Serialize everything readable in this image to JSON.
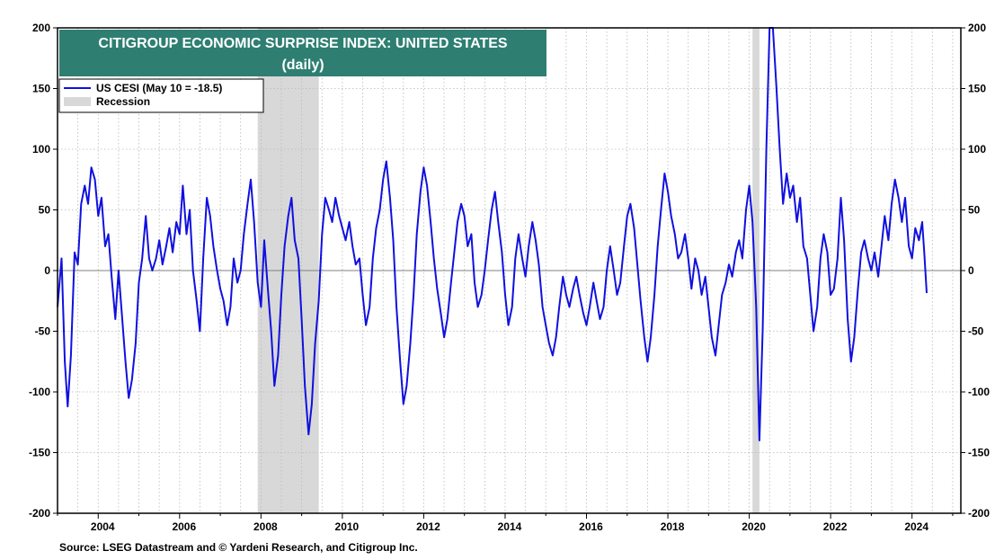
{
  "chart_data": {
    "type": "line",
    "title": "CITIGROUP ECONOMIC SURPRISE INDEX: UNITED STATES",
    "subtitle": "(daily)",
    "source": "Source: LSEG Datastream and © Yardeni Research, and Citigroup Inc.",
    "legend": {
      "placement": "top-left",
      "series_label": "US CESI (May 10 = -18.5)",
      "recession_label": "Recession"
    },
    "xlim": [
      2003.0,
      2025.2
    ],
    "ylim": [
      -200,
      200
    ],
    "x_ticks": [
      2004,
      2006,
      2008,
      2010,
      2012,
      2014,
      2016,
      2018,
      2020,
      2022,
      2024
    ],
    "y_ticks": [
      200,
      150,
      100,
      50,
      0,
      -50,
      -100,
      -150,
      -200
    ],
    "grid": true,
    "zero_line": true,
    "colors": {
      "series": "#1010e0",
      "recession": "#d8d8d8",
      "title_bg": "#2e7f72",
      "zero_line": "#808080"
    },
    "recessions": [
      [
        2007.92,
        2009.42
      ],
      [
        2020.08,
        2020.25
      ]
    ],
    "series": [
      {
        "name": "US CESI",
        "points": [
          [
            2003.0,
            -30
          ],
          [
            2003.1,
            10
          ],
          [
            2003.18,
            -75
          ],
          [
            2003.25,
            -112
          ],
          [
            2003.33,
            -70
          ],
          [
            2003.42,
            15
          ],
          [
            2003.5,
            5
          ],
          [
            2003.58,
            55
          ],
          [
            2003.67,
            70
          ],
          [
            2003.75,
            55
          ],
          [
            2003.83,
            85
          ],
          [
            2003.92,
            75
          ],
          [
            2004.0,
            45
          ],
          [
            2004.08,
            60
          ],
          [
            2004.17,
            20
          ],
          [
            2004.25,
            30
          ],
          [
            2004.33,
            -5
          ],
          [
            2004.42,
            -40
          ],
          [
            2004.5,
            0
          ],
          [
            2004.58,
            -35
          ],
          [
            2004.67,
            -75
          ],
          [
            2004.75,
            -105
          ],
          [
            2004.83,
            -90
          ],
          [
            2004.92,
            -60
          ],
          [
            2005.0,
            -10
          ],
          [
            2005.08,
            10
          ],
          [
            2005.17,
            45
          ],
          [
            2005.25,
            10
          ],
          [
            2005.33,
            0
          ],
          [
            2005.42,
            10
          ],
          [
            2005.5,
            25
          ],
          [
            2005.58,
            5
          ],
          [
            2005.67,
            20
          ],
          [
            2005.75,
            35
          ],
          [
            2005.83,
            15
          ],
          [
            2005.92,
            40
          ],
          [
            2006.0,
            30
          ],
          [
            2006.08,
            70
          ],
          [
            2006.17,
            30
          ],
          [
            2006.25,
            50
          ],
          [
            2006.33,
            0
          ],
          [
            2006.42,
            -25
          ],
          [
            2006.5,
            -50
          ],
          [
            2006.58,
            10
          ],
          [
            2006.67,
            60
          ],
          [
            2006.75,
            45
          ],
          [
            2006.83,
            20
          ],
          [
            2006.92,
            0
          ],
          [
            2007.0,
            -15
          ],
          [
            2007.08,
            -25
          ],
          [
            2007.17,
            -45
          ],
          [
            2007.25,
            -30
          ],
          [
            2007.33,
            10
          ],
          [
            2007.42,
            -10
          ],
          [
            2007.5,
            0
          ],
          [
            2007.58,
            30
          ],
          [
            2007.67,
            55
          ],
          [
            2007.75,
            75
          ],
          [
            2007.83,
            40
          ],
          [
            2007.92,
            -10
          ],
          [
            2008.0,
            -30
          ],
          [
            2008.08,
            25
          ],
          [
            2008.17,
            -15
          ],
          [
            2008.25,
            -50
          ],
          [
            2008.33,
            -95
          ],
          [
            2008.42,
            -70
          ],
          [
            2008.5,
            -20
          ],
          [
            2008.58,
            20
          ],
          [
            2008.67,
            45
          ],
          [
            2008.75,
            60
          ],
          [
            2008.83,
            25
          ],
          [
            2008.92,
            10
          ],
          [
            2009.0,
            -40
          ],
          [
            2009.08,
            -95
          ],
          [
            2009.17,
            -135
          ],
          [
            2009.25,
            -110
          ],
          [
            2009.33,
            -60
          ],
          [
            2009.42,
            -25
          ],
          [
            2009.5,
            30
          ],
          [
            2009.58,
            60
          ],
          [
            2009.67,
            50
          ],
          [
            2009.75,
            40
          ],
          [
            2009.83,
            60
          ],
          [
            2009.92,
            45
          ],
          [
            2010.0,
            35
          ],
          [
            2010.08,
            25
          ],
          [
            2010.17,
            40
          ],
          [
            2010.25,
            20
          ],
          [
            2010.33,
            5
          ],
          [
            2010.42,
            10
          ],
          [
            2010.5,
            -20
          ],
          [
            2010.58,
            -45
          ],
          [
            2010.67,
            -30
          ],
          [
            2010.75,
            10
          ],
          [
            2010.83,
            35
          ],
          [
            2010.92,
            50
          ],
          [
            2011.0,
            75
          ],
          [
            2011.08,
            90
          ],
          [
            2011.17,
            60
          ],
          [
            2011.25,
            25
          ],
          [
            2011.33,
            -30
          ],
          [
            2011.42,
            -75
          ],
          [
            2011.5,
            -110
          ],
          [
            2011.58,
            -95
          ],
          [
            2011.67,
            -60
          ],
          [
            2011.75,
            -20
          ],
          [
            2011.83,
            30
          ],
          [
            2011.92,
            65
          ],
          [
            2012.0,
            85
          ],
          [
            2012.08,
            70
          ],
          [
            2012.17,
            40
          ],
          [
            2012.25,
            10
          ],
          [
            2012.33,
            -15
          ],
          [
            2012.42,
            -35
          ],
          [
            2012.5,
            -55
          ],
          [
            2012.58,
            -40
          ],
          [
            2012.67,
            -10
          ],
          [
            2012.75,
            15
          ],
          [
            2012.83,
            40
          ],
          [
            2012.92,
            55
          ],
          [
            2013.0,
            45
          ],
          [
            2013.08,
            20
          ],
          [
            2013.17,
            30
          ],
          [
            2013.25,
            -10
          ],
          [
            2013.33,
            -30
          ],
          [
            2013.42,
            -20
          ],
          [
            2013.5,
            0
          ],
          [
            2013.58,
            25
          ],
          [
            2013.67,
            50
          ],
          [
            2013.75,
            65
          ],
          [
            2013.83,
            40
          ],
          [
            2013.92,
            15
          ],
          [
            2014.0,
            -20
          ],
          [
            2014.08,
            -45
          ],
          [
            2014.17,
            -30
          ],
          [
            2014.25,
            10
          ],
          [
            2014.33,
            30
          ],
          [
            2014.42,
            10
          ],
          [
            2014.5,
            -5
          ],
          [
            2014.58,
            20
          ],
          [
            2014.67,
            40
          ],
          [
            2014.75,
            25
          ],
          [
            2014.83,
            5
          ],
          [
            2014.92,
            -30
          ],
          [
            2015.0,
            -45
          ],
          [
            2015.08,
            -60
          ],
          [
            2015.17,
            -70
          ],
          [
            2015.25,
            -55
          ],
          [
            2015.33,
            -30
          ],
          [
            2015.42,
            -5
          ],
          [
            2015.5,
            -20
          ],
          [
            2015.58,
            -30
          ],
          [
            2015.67,
            -15
          ],
          [
            2015.75,
            -5
          ],
          [
            2015.83,
            -20
          ],
          [
            2015.92,
            -35
          ],
          [
            2016.0,
            -45
          ],
          [
            2016.08,
            -30
          ],
          [
            2016.17,
            -10
          ],
          [
            2016.25,
            -25
          ],
          [
            2016.33,
            -40
          ],
          [
            2016.42,
            -30
          ],
          [
            2016.5,
            0
          ],
          [
            2016.58,
            20
          ],
          [
            2016.67,
            0
          ],
          [
            2016.75,
            -20
          ],
          [
            2016.83,
            -10
          ],
          [
            2016.92,
            20
          ],
          [
            2017.0,
            45
          ],
          [
            2017.08,
            55
          ],
          [
            2017.17,
            35
          ],
          [
            2017.25,
            5
          ],
          [
            2017.33,
            -25
          ],
          [
            2017.42,
            -55
          ],
          [
            2017.5,
            -75
          ],
          [
            2017.58,
            -55
          ],
          [
            2017.67,
            -20
          ],
          [
            2017.75,
            20
          ],
          [
            2017.83,
            50
          ],
          [
            2017.92,
            80
          ],
          [
            2018.0,
            65
          ],
          [
            2018.08,
            45
          ],
          [
            2018.17,
            30
          ],
          [
            2018.25,
            10
          ],
          [
            2018.33,
            15
          ],
          [
            2018.42,
            30
          ],
          [
            2018.5,
            10
          ],
          [
            2018.58,
            -15
          ],
          [
            2018.67,
            10
          ],
          [
            2018.75,
            0
          ],
          [
            2018.83,
            -20
          ],
          [
            2018.92,
            -5
          ],
          [
            2019.0,
            -30
          ],
          [
            2019.08,
            -55
          ],
          [
            2019.17,
            -70
          ],
          [
            2019.25,
            -45
          ],
          [
            2019.33,
            -20
          ],
          [
            2019.42,
            -10
          ],
          [
            2019.5,
            5
          ],
          [
            2019.58,
            -5
          ],
          [
            2019.67,
            15
          ],
          [
            2019.75,
            25
          ],
          [
            2019.83,
            10
          ],
          [
            2019.92,
            50
          ],
          [
            2020.0,
            70
          ],
          [
            2020.08,
            40
          ],
          [
            2020.17,
            -30
          ],
          [
            2020.25,
            -140
          ],
          [
            2020.33,
            -50
          ],
          [
            2020.42,
            100
          ],
          [
            2020.5,
            200
          ],
          [
            2020.58,
            200
          ],
          [
            2020.67,
            150
          ],
          [
            2020.75,
            100
          ],
          [
            2020.83,
            55
          ],
          [
            2020.92,
            80
          ],
          [
            2021.0,
            60
          ],
          [
            2021.08,
            70
          ],
          [
            2021.17,
            40
          ],
          [
            2021.25,
            60
          ],
          [
            2021.33,
            20
          ],
          [
            2021.42,
            10
          ],
          [
            2021.5,
            -20
          ],
          [
            2021.58,
            -50
          ],
          [
            2021.67,
            -30
          ],
          [
            2021.75,
            10
          ],
          [
            2021.83,
            30
          ],
          [
            2021.92,
            15
          ],
          [
            2022.0,
            -20
          ],
          [
            2022.08,
            -15
          ],
          [
            2022.17,
            10
          ],
          [
            2022.25,
            60
          ],
          [
            2022.33,
            25
          ],
          [
            2022.42,
            -40
          ],
          [
            2022.5,
            -75
          ],
          [
            2022.58,
            -55
          ],
          [
            2022.67,
            -15
          ],
          [
            2022.75,
            15
          ],
          [
            2022.83,
            25
          ],
          [
            2022.92,
            10
          ],
          [
            2023.0,
            0
          ],
          [
            2023.08,
            15
          ],
          [
            2023.17,
            -5
          ],
          [
            2023.25,
            20
          ],
          [
            2023.33,
            45
          ],
          [
            2023.42,
            25
          ],
          [
            2023.5,
            55
          ],
          [
            2023.58,
            75
          ],
          [
            2023.67,
            60
          ],
          [
            2023.75,
            40
          ],
          [
            2023.83,
            60
          ],
          [
            2023.92,
            20
          ],
          [
            2024.0,
            10
          ],
          [
            2024.08,
            35
          ],
          [
            2024.17,
            25
          ],
          [
            2024.25,
            40
          ],
          [
            2024.3,
            15
          ],
          [
            2024.36,
            -18.5
          ]
        ]
      }
    ]
  }
}
